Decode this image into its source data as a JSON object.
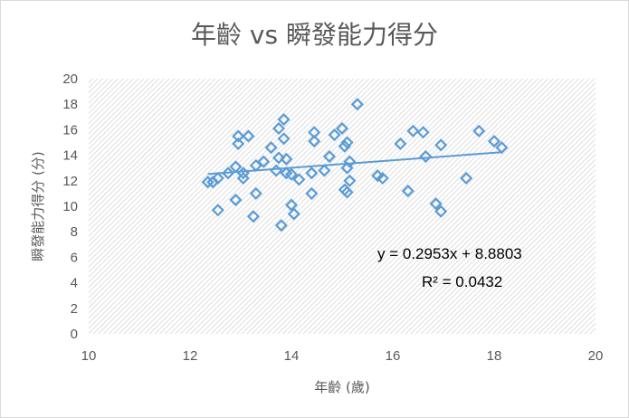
{
  "chart_data": {
    "type": "scatter",
    "title": "年齡 vs 瞬發能力得分",
    "xlabel": "年齡 (歲)",
    "ylabel": "瞬發能力得分 (分)",
    "xlim": [
      10,
      20
    ],
    "ylim": [
      0,
      20
    ],
    "xticks": [
      "10",
      "12",
      "14",
      "16",
      "18",
      "20"
    ],
    "yticks": [
      "0",
      "2",
      "4",
      "6",
      "8",
      "10",
      "12",
      "14",
      "16",
      "18",
      "20"
    ],
    "grid": false,
    "plot_fill": "hatched-light-gray",
    "series": [
      {
        "marker": "diamond-hollow",
        "color": "#5b9bd5",
        "points": [
          [
            12.35,
            11.9
          ],
          [
            12.45,
            11.9
          ],
          [
            12.55,
            9.7
          ],
          [
            12.55,
            12.2
          ],
          [
            12.75,
            12.6
          ],
          [
            12.9,
            13.1
          ],
          [
            12.9,
            10.5
          ],
          [
            12.95,
            14.9
          ],
          [
            12.95,
            15.5
          ],
          [
            13.05,
            12.2
          ],
          [
            13.05,
            12.6
          ],
          [
            13.15,
            15.5
          ],
          [
            13.25,
            9.2
          ],
          [
            13.3,
            11.0
          ],
          [
            13.3,
            13.2
          ],
          [
            13.45,
            13.5
          ],
          [
            13.6,
            14.6
          ],
          [
            13.7,
            12.8
          ],
          [
            13.75,
            13.8
          ],
          [
            13.75,
            16.1
          ],
          [
            13.8,
            8.5
          ],
          [
            13.85,
            15.3
          ],
          [
            13.85,
            16.8
          ],
          [
            13.9,
            13.7
          ],
          [
            13.9,
            12.6
          ],
          [
            14.0,
            12.5
          ],
          [
            14.0,
            10.1
          ],
          [
            14.05,
            9.4
          ],
          [
            14.15,
            12.1
          ],
          [
            14.4,
            11.0
          ],
          [
            14.4,
            12.6
          ],
          [
            14.45,
            15.8
          ],
          [
            14.45,
            15.1
          ],
          [
            14.65,
            12.8
          ],
          [
            14.75,
            13.9
          ],
          [
            14.85,
            15.6
          ],
          [
            15.0,
            16.1
          ],
          [
            15.05,
            11.3
          ],
          [
            15.05,
            14.7
          ],
          [
            15.1,
            13.0
          ],
          [
            15.1,
            15.0
          ],
          [
            15.1,
            11.1
          ],
          [
            15.15,
            13.5
          ],
          [
            15.15,
            12.0
          ],
          [
            15.3,
            18.0
          ],
          [
            15.7,
            12.4
          ],
          [
            15.8,
            12.2
          ],
          [
            16.15,
            14.9
          ],
          [
            16.3,
            11.2
          ],
          [
            16.4,
            15.9
          ],
          [
            16.6,
            15.8
          ],
          [
            16.65,
            13.9
          ],
          [
            16.85,
            10.2
          ],
          [
            16.95,
            14.8
          ],
          [
            16.95,
            9.6
          ],
          [
            17.45,
            12.2
          ],
          [
            17.7,
            15.9
          ],
          [
            18.0,
            15.1
          ],
          [
            18.15,
            14.6
          ]
        ]
      }
    ],
    "trendline": {
      "type": "linear",
      "slope": 0.2953,
      "intercept": 8.8803,
      "x_range": [
        12.35,
        18.15
      ],
      "color": "#5b9bd5",
      "equation_label": "y = 0.2953x + 8.8803",
      "r2_label": "R² = 0.0432"
    }
  }
}
